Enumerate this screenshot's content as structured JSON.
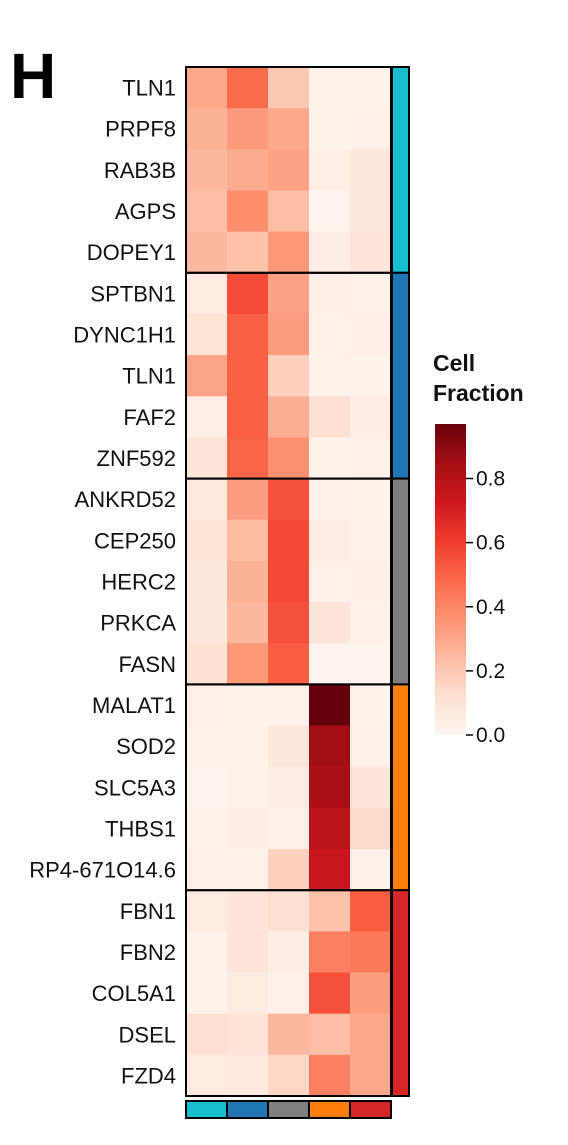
{
  "panel_label": "H",
  "colors": {
    "scale": [
      "#fff5f0",
      "#fee0d2",
      "#fcbba1",
      "#fc9272",
      "#fb6a4a",
      "#ef3b2c",
      "#cb181d",
      "#a50f15",
      "#67000d"
    ],
    "clusters": [
      "#17becf",
      "#1f77b4",
      "#7f7f7f",
      "#ff7f0e",
      "#d62728"
    ]
  },
  "chart_data": {
    "type": "heatmap",
    "title": "",
    "xlabel": "",
    "ylabel": "",
    "legend": {
      "title_lines": [
        "Cell",
        "Fraction"
      ],
      "range": [
        0,
        0.97
      ],
      "ticks": [
        "0.0",
        "0.2",
        "0.4",
        "0.6",
        "0.8"
      ],
      "tick_values": [
        0,
        0.2,
        0.4,
        0.6,
        0.8
      ],
      "placement": "right"
    },
    "columns": 5,
    "column_cluster_colors": [
      "#17becf",
      "#1f77b4",
      "#7f7f7f",
      "#ff7f0e",
      "#d62728"
    ],
    "row_groups": [
      {
        "cluster_color": "#17becf",
        "genes": [
          "TLN1",
          "PRPF8",
          "RAB3B",
          "AGPS",
          "DOPEY1"
        ],
        "values": [
          [
            0.3,
            0.48,
            0.2,
            0.02,
            0.02
          ],
          [
            0.27,
            0.34,
            0.3,
            0.02,
            0.03
          ],
          [
            0.25,
            0.29,
            0.32,
            0.04,
            0.08
          ],
          [
            0.23,
            0.38,
            0.23,
            0.01,
            0.08
          ],
          [
            0.25,
            0.22,
            0.35,
            0.05,
            0.09
          ]
        ]
      },
      {
        "cluster_color": "#1f77b4",
        "genes": [
          "SPTBN1",
          "DYNC1H1",
          "TLN1",
          "FAF2",
          "ZNF592"
        ],
        "values": [
          [
            0.06,
            0.56,
            0.32,
            0.04,
            0.03
          ],
          [
            0.1,
            0.51,
            0.33,
            0.03,
            0.04
          ],
          [
            0.31,
            0.51,
            0.17,
            0.02,
            0.02
          ],
          [
            0.04,
            0.51,
            0.28,
            0.12,
            0.05
          ],
          [
            0.09,
            0.5,
            0.37,
            0.02,
            0.03
          ]
        ]
      },
      {
        "cluster_color": "#7f7f7f",
        "genes": [
          "ANKRD52",
          "CEP250",
          "HERC2",
          "PRKCA",
          "FASN"
        ],
        "values": [
          [
            0.07,
            0.33,
            0.55,
            0.03,
            0.02
          ],
          [
            0.1,
            0.24,
            0.57,
            0.05,
            0.03
          ],
          [
            0.08,
            0.27,
            0.57,
            0.03,
            0.04
          ],
          [
            0.08,
            0.25,
            0.55,
            0.09,
            0.03
          ],
          [
            0.11,
            0.35,
            0.52,
            0.01,
            0.01
          ]
        ]
      },
      {
        "cluster_color": "#ff7f0e",
        "genes": [
          "MALAT1",
          "SOD2",
          "SLC5A3",
          "THBS1",
          "RP4-671O14.6"
        ],
        "values": [
          [
            0.03,
            0.02,
            0.02,
            0.97,
            0.02
          ],
          [
            0.02,
            0.02,
            0.08,
            0.85,
            0.03
          ],
          [
            0.01,
            0.02,
            0.05,
            0.83,
            0.09
          ],
          [
            0.02,
            0.05,
            0.03,
            0.78,
            0.14
          ],
          [
            0.03,
            0.03,
            0.17,
            0.74,
            0.03
          ]
        ]
      },
      {
        "cluster_color": "#d62728",
        "genes": [
          "FBN1",
          "FBN2",
          "COL5A1",
          "DSEL",
          "FZD4"
        ],
        "values": [
          [
            0.06,
            0.09,
            0.12,
            0.22,
            0.52
          ],
          [
            0.02,
            0.09,
            0.05,
            0.42,
            0.44
          ],
          [
            0.02,
            0.06,
            0.03,
            0.55,
            0.33
          ],
          [
            0.12,
            0.1,
            0.25,
            0.23,
            0.3
          ],
          [
            0.06,
            0.07,
            0.15,
            0.42,
            0.3
          ]
        ]
      }
    ]
  }
}
